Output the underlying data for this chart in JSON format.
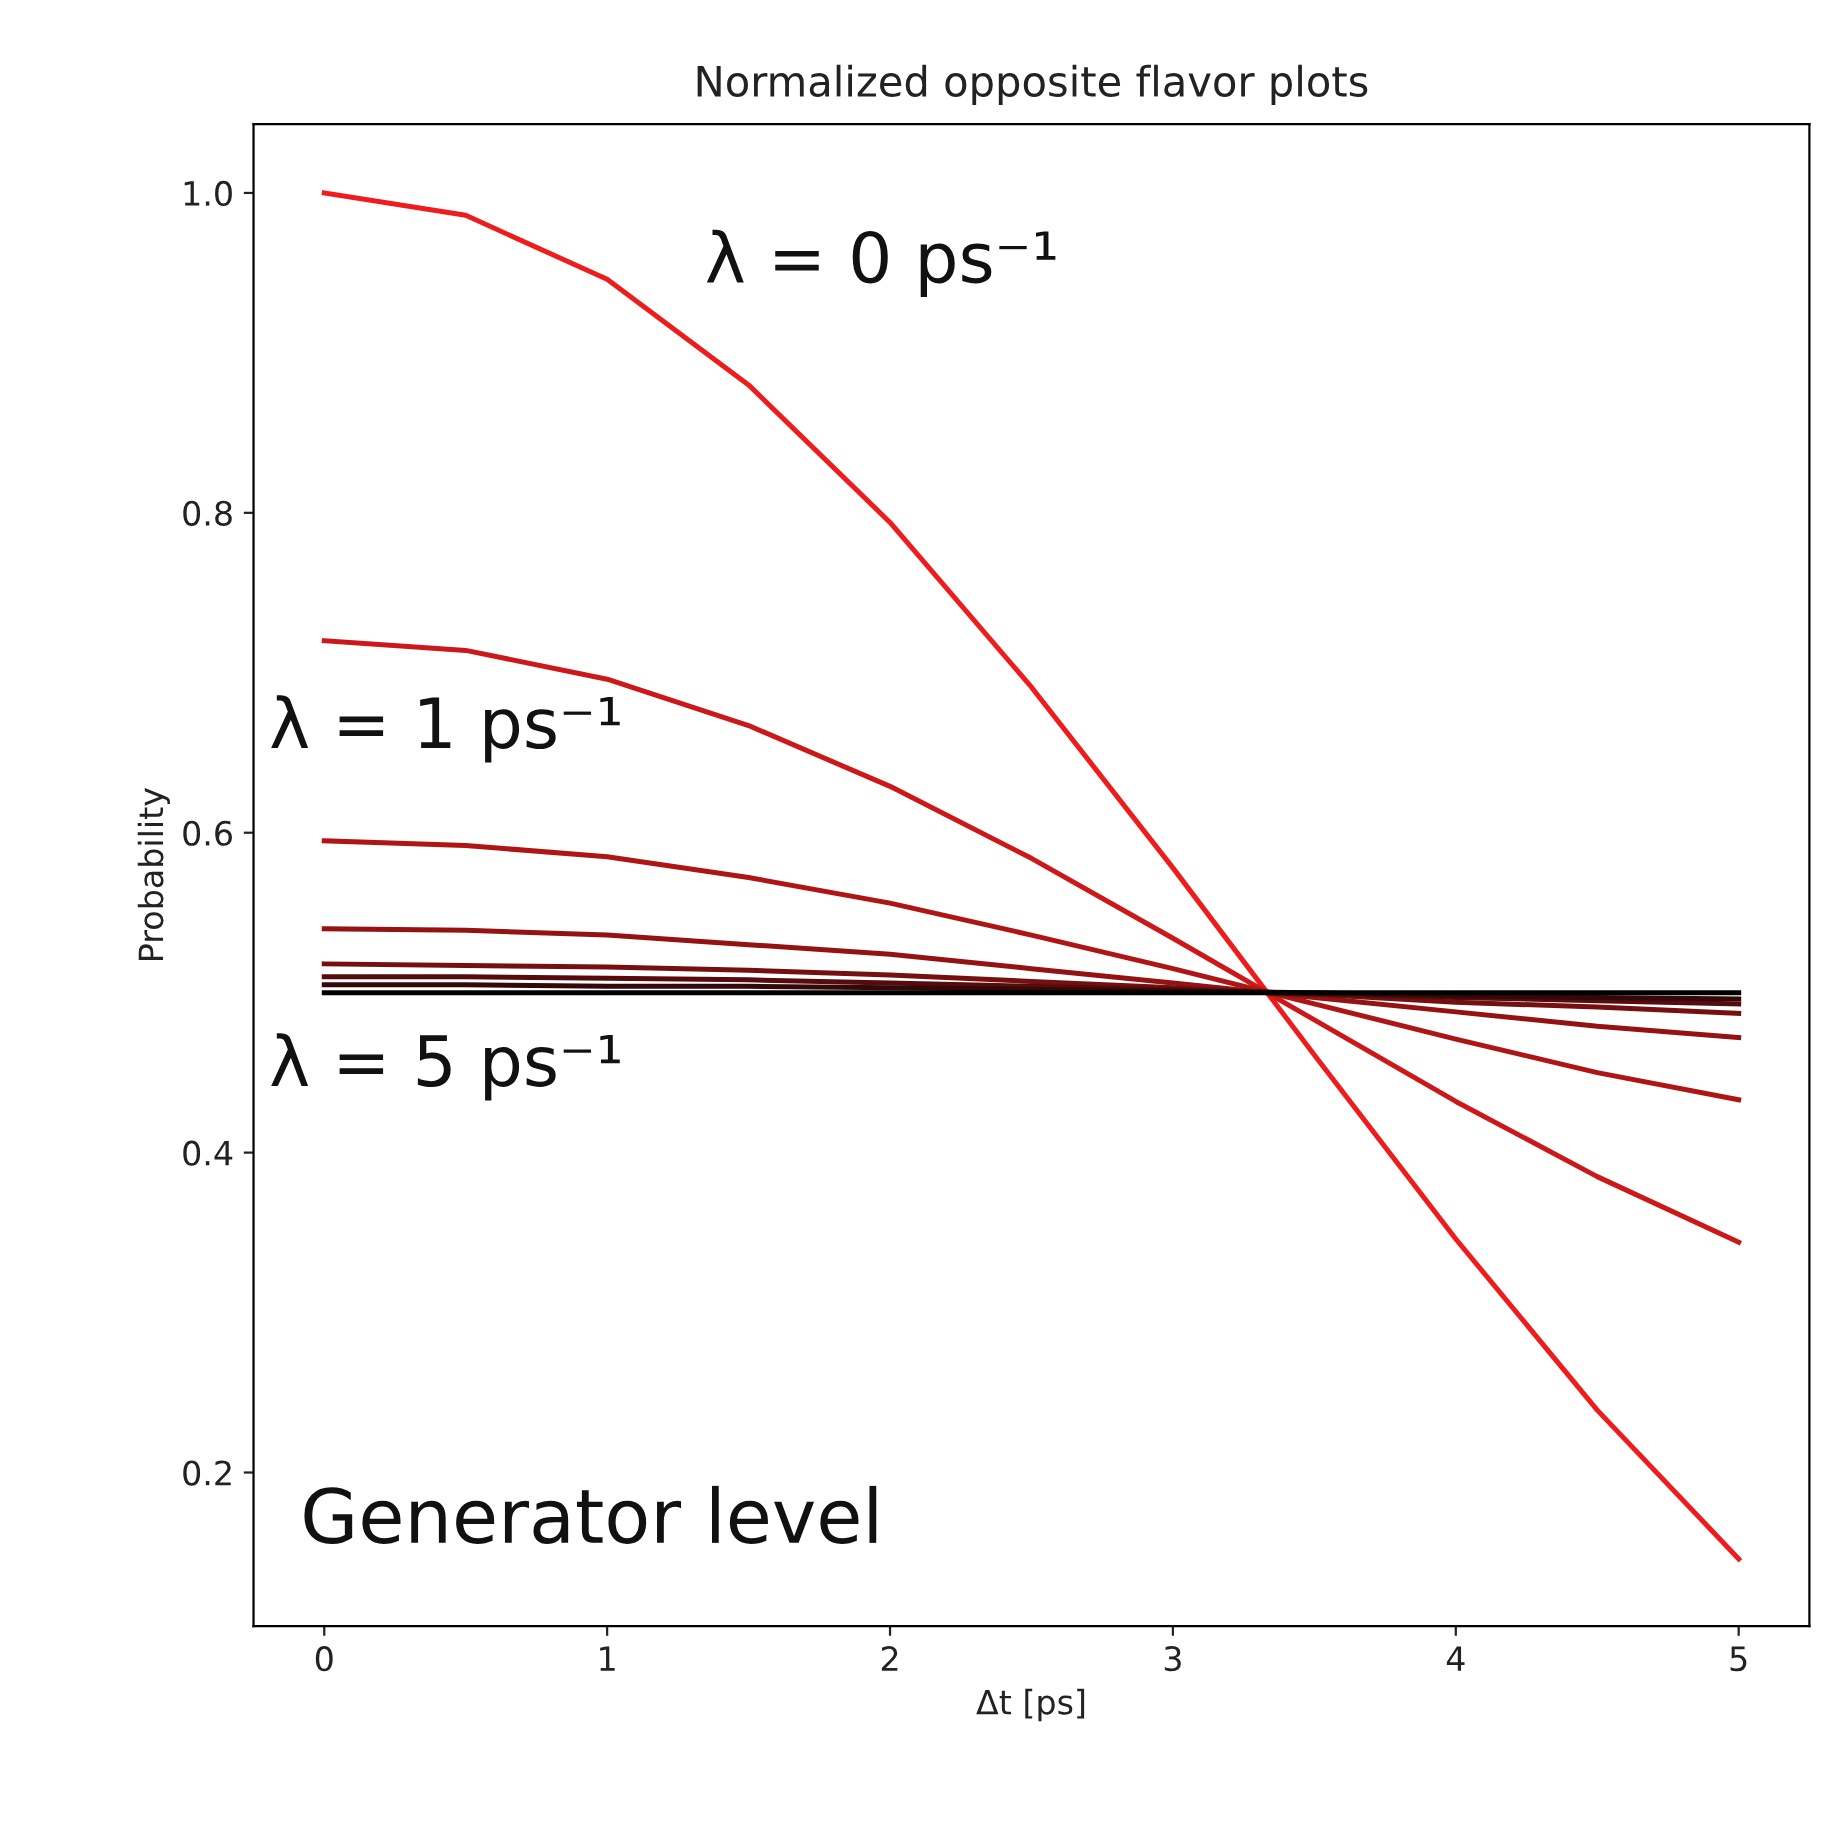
{
  "chart_data": {
    "type": "line",
    "title": "Normalized opposite flavor plots",
    "xlabel": "Δt [ps]",
    "ylabel": "Probability",
    "x": [
      0,
      0.5,
      1,
      1.5,
      2,
      2.5,
      3,
      3.5,
      4,
      4.5,
      5
    ],
    "series": [
      {
        "color": "#ee1c1c",
        "values": [
          1.0,
          0.986,
          0.946,
          0.88,
          0.794,
          0.691,
          0.578,
          0.461,
          0.346,
          0.239,
          0.146
        ]
      },
      {
        "color": "#cc1818",
        "values": [
          0.72,
          0.714,
          0.696,
          0.667,
          0.629,
          0.584,
          0.534,
          0.483,
          0.432,
          0.385,
          0.344
        ]
      },
      {
        "color": "#b01515",
        "values": [
          0.595,
          0.592,
          0.585,
          0.572,
          0.556,
          0.536,
          0.515,
          0.493,
          0.471,
          0.45,
          0.433
        ]
      },
      {
        "color": "#941212",
        "values": [
          0.54,
          0.539,
          0.536,
          0.53,
          0.524,
          0.515,
          0.506,
          0.497,
          0.488,
          0.479,
          0.472
        ]
      },
      {
        "color": "#761010",
        "values": [
          0.518,
          0.517,
          0.516,
          0.514,
          0.511,
          0.507,
          0.503,
          0.499,
          0.494,
          0.491,
          0.487
        ]
      },
      {
        "color": "#560c0c",
        "values": [
          0.51,
          0.51,
          0.509,
          0.508,
          0.506,
          0.504,
          0.502,
          0.499,
          0.497,
          0.495,
          0.493
        ]
      },
      {
        "color": "#340808",
        "values": [
          0.505,
          0.505,
          0.504,
          0.504,
          0.503,
          0.502,
          0.501,
          0.5,
          0.498,
          0.497,
          0.496
        ]
      },
      {
        "color": "#000000",
        "values": [
          0.5,
          0.5,
          0.5,
          0.5,
          0.5,
          0.5,
          0.5,
          0.5,
          0.5,
          0.5,
          0.5
        ]
      }
    ],
    "xlim": [
      -0.25,
      5.25
    ],
    "ylim": [
      0.104,
      1.043
    ],
    "xticks": [
      0,
      1,
      2,
      3,
      4,
      5
    ],
    "yticks": [
      0.2,
      0.4,
      0.6,
      0.8,
      {
        "value": 1,
        "label": "1.0"
      }
    ],
    "annotations": [
      "λ = 0 ps⁻¹",
      "λ = 1 ps⁻¹",
      "λ = 5 ps⁻¹",
      "Generator level"
    ],
    "grid": false,
    "legend": false,
    "marker": "none",
    "line_style": "solid"
  }
}
